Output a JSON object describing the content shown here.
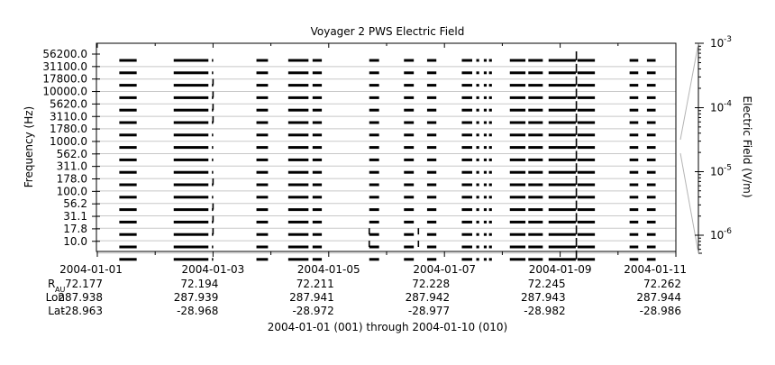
{
  "chart_data": {
    "type": "line",
    "title": "Voyager 2 PWS Electric Field",
    "ylabel": "Frequency (Hz)",
    "colorbar_label": "Electric Field (V/m)",
    "xlabel": "2004-01-01 (001) through 2004-01-10 (010)",
    "xlim_days": [
      0,
      10
    ],
    "x_tick_labels": [
      "2004-01-01",
      "2004-01-03",
      "2004-01-05",
      "2004-01-07",
      "2004-01-09",
      "2004-01-11"
    ],
    "ephemeris": {
      "labels": {
        "r_main": "R",
        "r_sub": "AU",
        "lon": "Lon",
        "lat": "Lat"
      },
      "r_au": [
        "72.177",
        "72.194",
        "72.211",
        "72.228",
        "72.245",
        "72.262"
      ],
      "lon": [
        "287.938",
        "287.939",
        "287.941",
        "287.942",
        "287.943",
        "287.944"
      ],
      "lat": [
        "-28.963",
        "-28.968",
        "-28.972",
        "-28.977",
        "-28.982",
        "-28.986"
      ]
    },
    "y_tick_labels": [
      "56200.0",
      "31100.0",
      "17800.0",
      "10000.0",
      "5620.0",
      "3110.0",
      "1780.0",
      "1000.0",
      "562.0",
      "311.0",
      "178.0",
      "100.0",
      "56.2",
      "31.1",
      "17.8",
      "10.0"
    ],
    "colorbar_scale": "log",
    "colorbar_ticks": [
      {
        "base": "10",
        "exp": "-3"
      },
      {
        "base": "10",
        "exp": "-4"
      },
      {
        "base": "10",
        "exp": "-5"
      },
      {
        "base": "10",
        "exp": "-6"
      }
    ],
    "grid": true,
    "channel_count": 17,
    "data_segments_days": [
      [
        0.38,
        0.68
      ],
      [
        1.32,
        1.92
      ],
      [
        1.98,
        2.0
      ],
      [
        2.75,
        2.95
      ],
      [
        3.3,
        3.65
      ],
      [
        3.72,
        3.88
      ],
      [
        4.7,
        4.87
      ],
      [
        5.3,
        5.47
      ],
      [
        5.7,
        5.86
      ],
      [
        6.3,
        6.48
      ],
      [
        6.55,
        6.6
      ],
      [
        6.68,
        6.73
      ],
      [
        6.77,
        6.82
      ],
      [
        7.13,
        7.4
      ],
      [
        7.45,
        7.7
      ],
      [
        7.8,
        8.27
      ],
      [
        8.3,
        8.6
      ],
      [
        9.2,
        9.35
      ],
      [
        9.5,
        9.65
      ]
    ],
    "bursts_days": [
      {
        "x": 2.0,
        "channels": [
          2,
          3,
          4,
          5,
          10,
          12,
          13,
          14
        ]
      },
      {
        "x": 8.28,
        "channels": [
          0,
          1,
          2,
          3,
          4,
          5,
          6,
          7,
          8,
          9,
          10,
          11,
          12,
          13,
          14,
          15,
          16
        ]
      },
      {
        "x": 4.7,
        "channels": [
          14,
          15
        ]
      },
      {
        "x": 5.55,
        "channels": [
          14,
          15
        ]
      }
    ]
  }
}
